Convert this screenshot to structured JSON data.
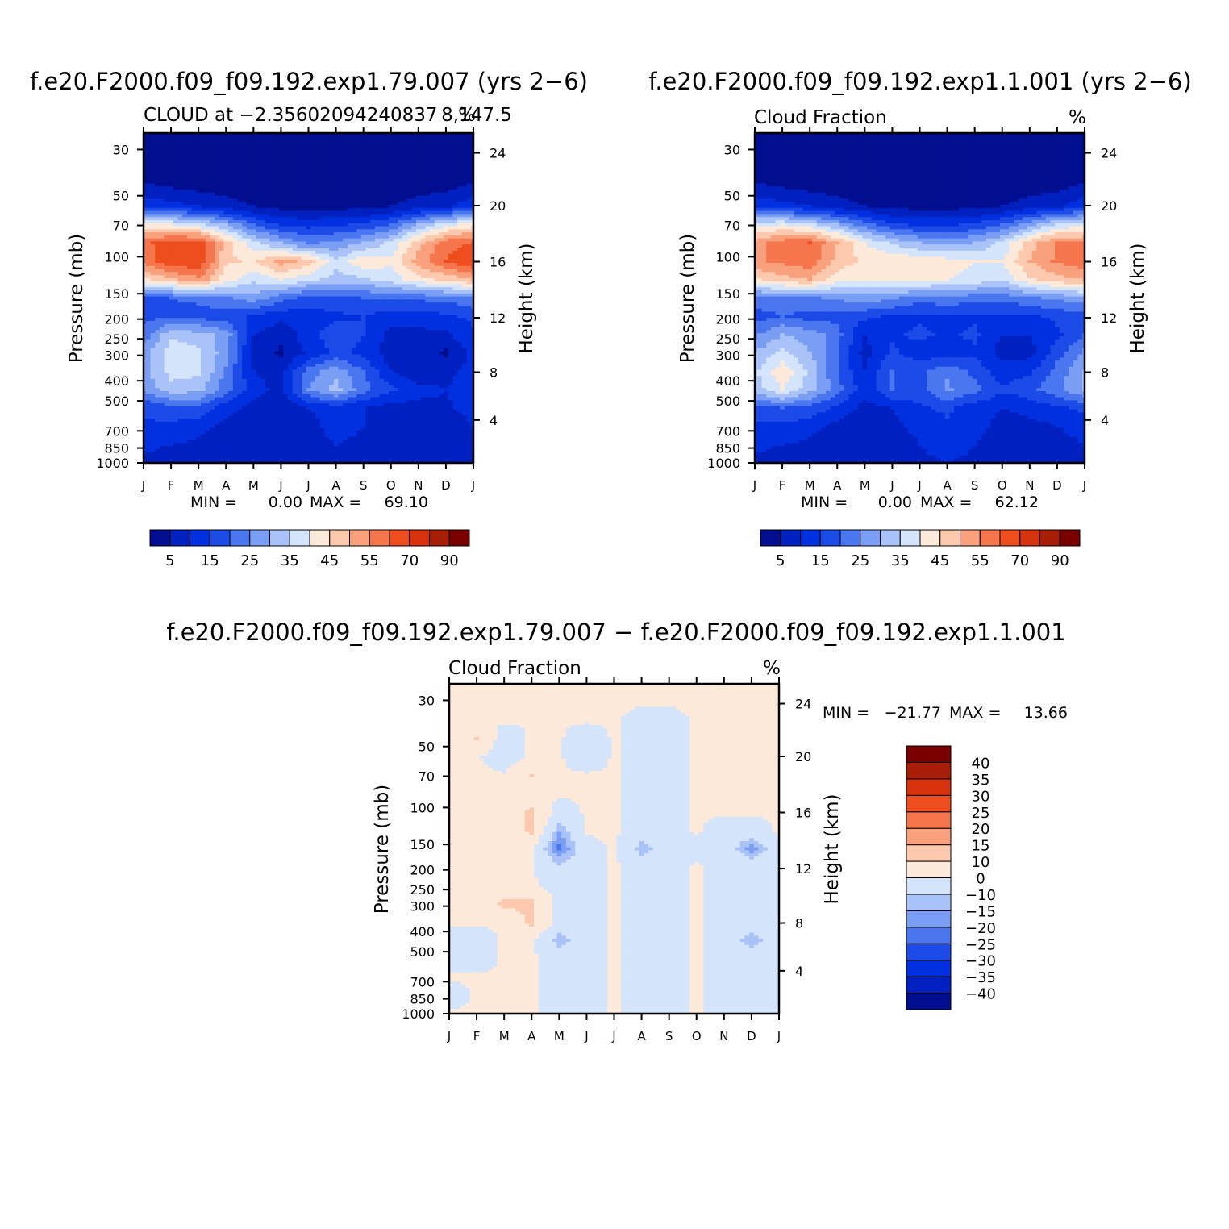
{
  "chart_data": [
    {
      "type": "heatmap",
      "title": "f.e20.F2000.f09_f09.192.exp1.79.007 (yrs 2−6)",
      "subtitle": "CLOUD at −2.35602094240837 8,147.5",
      "units": "%",
      "ylabel": "Pressure (mb)",
      "ylabel_right": "Height (km)",
      "x_ticks": [
        "J",
        "F",
        "M",
        "A",
        "M",
        "J",
        "J",
        "A",
        "S",
        "O",
        "N",
        "D",
        "J"
      ],
      "y_ticks": [
        "30",
        "50",
        "70",
        "100",
        "150",
        "200",
        "250",
        "300",
        "400",
        "500",
        "700",
        "850",
        "1000"
      ],
      "y_right_ticks": [
        "24",
        "20",
        "16",
        "12",
        "8",
        "4"
      ],
      "stats": {
        "min_label": "MIN =",
        "min": "0.00",
        "max_label": "MAX =",
        "max": "69.10"
      },
      "colorbar_labels": [
        "5",
        "15",
        "25",
        "35",
        "45",
        "55",
        "70",
        "90"
      ],
      "levels": [
        5,
        10,
        15,
        20,
        25,
        30,
        35,
        40,
        45,
        50,
        55,
        60,
        70,
        80,
        90
      ],
      "palette": [
        "#000e8f",
        "#0020c0",
        "#0030e0",
        "#1c4be8",
        "#4a76f0",
        "#7a9ef4",
        "#a9c2f8",
        "#d4e4fb",
        "#fde9d9",
        "#fcc8ae",
        "#f9a17c",
        "#f5764c",
        "#ee4d1e",
        "#d6320c",
        "#a81d06",
        "#7a0000"
      ],
      "values": [
        [
          0,
          0,
          0,
          0,
          0,
          0,
          0,
          0,
          0,
          0,
          0,
          0,
          0
        ],
        [
          0,
          0,
          0,
          0,
          0,
          0,
          0,
          0,
          0,
          0,
          0,
          0,
          0
        ],
        [
          2,
          1,
          1,
          0,
          0,
          0,
          0,
          0,
          0,
          0,
          0,
          1,
          2
        ],
        [
          6,
          5,
          4,
          3,
          2,
          1,
          1,
          1,
          1,
          2,
          3,
          4,
          6
        ],
        [
          14,
          12,
          10,
          7,
          5,
          3,
          3,
          3,
          3,
          5,
          7,
          9,
          14
        ],
        [
          42,
          40,
          37,
          30,
          20,
          14,
          13,
          14,
          16,
          20,
          30,
          38,
          42
        ],
        [
          58,
          64,
          63,
          48,
          36,
          30,
          24,
          26,
          30,
          36,
          48,
          58,
          60
        ],
        [
          57,
          64,
          64,
          46,
          44,
          52,
          48,
          36,
          44,
          41,
          52,
          60,
          66
        ],
        [
          44,
          49,
          54,
          42,
          36,
          40,
          36,
          33,
          34,
          37,
          43,
          46,
          50
        ],
        [
          18,
          20,
          21,
          24,
          28,
          22,
          18,
          19,
          20,
          20,
          21,
          22,
          24
        ],
        [
          18,
          19,
          18,
          17,
          14,
          12,
          12,
          14,
          15,
          13,
          13,
          14,
          16
        ],
        [
          22,
          34,
          32,
          28,
          10,
          6,
          13,
          18,
          15,
          8,
          8,
          9,
          14
        ],
        [
          28,
          38,
          36,
          27,
          8,
          4,
          11,
          16,
          14,
          7,
          7,
          4,
          12
        ],
        [
          28,
          37,
          36,
          24,
          10,
          8,
          22,
          28,
          20,
          10,
          6,
          8,
          12
        ],
        [
          26,
          33,
          32,
          22,
          12,
          8,
          25,
          32,
          22,
          16,
          12,
          10,
          14
        ],
        [
          16,
          18,
          18,
          12,
          8,
          6,
          10,
          13,
          10,
          8,
          8,
          9,
          12
        ],
        [
          14,
          14,
          12,
          8,
          6,
          5,
          8,
          12,
          10,
          6,
          6,
          6,
          10
        ],
        [
          11,
          10,
          9,
          6,
          5,
          5,
          8,
          10,
          9,
          6,
          5,
          5,
          9
        ],
        [
          9,
          8,
          7,
          6,
          5,
          5,
          8,
          9,
          8,
          6,
          5,
          5,
          8
        ]
      ]
    },
    {
      "type": "heatmap",
      "title": "f.e20.F2000.f09_f09.192.exp1.1.001 (yrs 2−6)",
      "subtitle": "Cloud Fraction",
      "units": "%",
      "ylabel": "Pressure (mb)",
      "ylabel_right": "Height (km)",
      "x_ticks": [
        "J",
        "F",
        "M",
        "A",
        "M",
        "J",
        "J",
        "A",
        "S",
        "O",
        "N",
        "D",
        "J"
      ],
      "y_ticks": [
        "30",
        "50",
        "70",
        "100",
        "150",
        "200",
        "250",
        "300",
        "400",
        "500",
        "700",
        "850",
        "1000"
      ],
      "y_right_ticks": [
        "24",
        "20",
        "16",
        "12",
        "8",
        "4"
      ],
      "stats": {
        "min_label": "MIN =",
        "min": "0.00",
        "max_label": "MAX =",
        "max": "62.12"
      },
      "colorbar_labels": [
        "5",
        "15",
        "25",
        "35",
        "45",
        "55",
        "70",
        "90"
      ],
      "levels": [
        5,
        10,
        15,
        20,
        25,
        30,
        35,
        40,
        45,
        50,
        55,
        60,
        70,
        80,
        90
      ],
      "palette": [
        "#000e8f",
        "#0020c0",
        "#0030e0",
        "#1c4be8",
        "#4a76f0",
        "#7a9ef4",
        "#a9c2f8",
        "#d4e4fb",
        "#fde9d9",
        "#fcc8ae",
        "#f9a17c",
        "#f5764c",
        "#ee4d1e",
        "#d6320c",
        "#a81d06",
        "#7a0000"
      ],
      "values": [
        [
          0,
          0,
          0,
          0,
          0,
          0,
          0,
          0,
          0,
          0,
          0,
          0,
          0
        ],
        [
          0,
          0,
          0,
          0,
          0,
          0,
          0,
          0,
          0,
          0,
          0,
          0,
          0
        ],
        [
          2,
          1,
          1,
          0,
          0,
          0,
          0,
          0,
          0,
          0,
          0,
          1,
          2
        ],
        [
          6,
          5,
          4,
          3,
          2,
          1,
          1,
          1,
          1,
          2,
          3,
          4,
          6
        ],
        [
          14,
          12,
          10,
          7,
          5,
          3,
          3,
          3,
          3,
          5,
          7,
          9,
          14
        ],
        [
          38,
          40,
          36,
          30,
          22,
          16,
          14,
          14,
          16,
          20,
          28,
          36,
          38
        ],
        [
          52,
          58,
          60,
          50,
          40,
          34,
          30,
          28,
          30,
          36,
          48,
          56,
          56
        ],
        [
          54,
          56,
          58,
          48,
          44,
          44,
          44,
          42,
          40,
          40,
          50,
          56,
          58
        ],
        [
          44,
          48,
          50,
          42,
          40,
          42,
          42,
          40,
          38,
          36,
          44,
          48,
          50
        ],
        [
          22,
          24,
          24,
          26,
          28,
          26,
          22,
          24,
          22,
          22,
          24,
          26,
          28
        ],
        [
          18,
          20,
          18,
          18,
          16,
          14,
          14,
          14,
          14,
          14,
          14,
          16,
          18
        ],
        [
          24,
          30,
          28,
          22,
          10,
          14,
          16,
          14,
          16,
          10,
          10,
          14,
          20
        ],
        [
          30,
          36,
          30,
          20,
          8,
          16,
          12,
          12,
          14,
          8,
          8,
          18,
          26
        ],
        [
          34,
          44,
          34,
          20,
          10,
          20,
          18,
          24,
          18,
          12,
          14,
          22,
          30
        ],
        [
          32,
          40,
          32,
          22,
          12,
          20,
          18,
          26,
          22,
          16,
          18,
          24,
          30
        ],
        [
          18,
          20,
          18,
          14,
          8,
          10,
          14,
          16,
          12,
          10,
          12,
          14,
          16
        ],
        [
          14,
          14,
          12,
          8,
          6,
          8,
          12,
          14,
          12,
          8,
          8,
          10,
          12
        ],
        [
          11,
          10,
          9,
          6,
          5,
          6,
          10,
          12,
          10,
          6,
          6,
          8,
          10
        ],
        [
          9,
          8,
          7,
          6,
          5,
          6,
          9,
          10,
          9,
          6,
          5,
          7,
          9
        ]
      ]
    },
    {
      "type": "heatmap",
      "title": "f.e20.F2000.f09_f09.192.exp1.79.007 − f.e20.F2000.f09_f09.192.exp1.1.001",
      "subtitle": "Cloud Fraction",
      "units": "%",
      "ylabel": "Pressure (mb)",
      "ylabel_right": "Height (km)",
      "x_ticks": [
        "J",
        "F",
        "M",
        "A",
        "M",
        "J",
        "J",
        "A",
        "S",
        "O",
        "N",
        "D",
        "J"
      ],
      "y_ticks": [
        "30",
        "50",
        "70",
        "100",
        "150",
        "200",
        "250",
        "300",
        "400",
        "500",
        "700",
        "850",
        "1000"
      ],
      "y_right_ticks": [
        "24",
        "20",
        "16",
        "12",
        "8",
        "4"
      ],
      "stats": {
        "min_label": "MIN =",
        "min": "−21.77",
        "max_label": "MAX =",
        "max": "13.66"
      },
      "colorbar_labels": [
        "40",
        "35",
        "30",
        "25",
        "20",
        "15",
        "10",
        "0",
        "−10",
        "−15",
        "−20",
        "−25",
        "−30",
        "−35",
        "−40"
      ],
      "levels": [
        -40,
        -35,
        -30,
        -25,
        -20,
        -15,
        -10,
        0,
        10,
        15,
        20,
        25,
        30,
        35,
        40
      ],
      "palette": [
        "#000e8f",
        "#0020c0",
        "#0030e0",
        "#1c4be8",
        "#4a76f0",
        "#7a9ef4",
        "#a9c2f8",
        "#d4e4fb",
        "#fde9d9",
        "#fcc8ae",
        "#f9a17c",
        "#f5764c",
        "#ee4d1e",
        "#d6320c",
        "#a81d06",
        "#7a0000"
      ],
      "values": [
        [
          1,
          1,
          1,
          1,
          1,
          1,
          1,
          1,
          1,
          1,
          1,
          1,
          1
        ],
        [
          1,
          1,
          1,
          1,
          1,
          1,
          1,
          1,
          1,
          1,
          1,
          1,
          1
        ],
        [
          1,
          1,
          1,
          1,
          1,
          1,
          1,
          -3,
          -3,
          1,
          1,
          1,
          1
        ],
        [
          1,
          11,
          -5,
          1,
          1,
          -6,
          1,
          -3,
          -3,
          1,
          1,
          1,
          1
        ],
        [
          1,
          1,
          -5,
          1,
          1,
          -6,
          1,
          -3,
          -3,
          1,
          1,
          1,
          1
        ],
        [
          1,
          1,
          1,
          11,
          1,
          1,
          1,
          -3,
          -3,
          1,
          1,
          1,
          1
        ],
        [
          1,
          1,
          1,
          1,
          1,
          1,
          1,
          -3,
          -3,
          1,
          1,
          1,
          1
        ],
        [
          1,
          1,
          1,
          12,
          -4,
          1,
          1,
          -3,
          -3,
          1,
          1,
          1,
          1
        ],
        [
          1,
          1,
          1,
          12,
          -14,
          1,
          1,
          -3,
          -3,
          1,
          -4,
          -4,
          1
        ],
        [
          1,
          1,
          1,
          1,
          -22,
          -3,
          1,
          -14,
          -3,
          -3,
          -4,
          -18,
          -3
        ],
        [
          1,
          1,
          1,
          1,
          -8,
          -3,
          1,
          -3,
          -3,
          1,
          -3,
          -3,
          -3
        ],
        [
          1,
          1,
          1,
          1,
          -3,
          -3,
          1,
          -3,
          -3,
          1,
          -3,
          -3,
          -3
        ],
        [
          1,
          1,
          12,
          12,
          -3,
          -3,
          1,
          -3,
          -3,
          1,
          -3,
          -3,
          -3
        ],
        [
          1,
          1,
          1,
          12,
          -3,
          -3,
          1,
          -3,
          -3,
          1,
          -3,
          -3,
          -3
        ],
        [
          -4,
          -4,
          1,
          1,
          -14,
          -3,
          1,
          -3,
          -3,
          1,
          -3,
          -14,
          -3
        ],
        [
          -4,
          -4,
          1,
          1,
          -3,
          -3,
          1,
          -3,
          -3,
          1,
          -3,
          -3,
          -3
        ],
        [
          1,
          1,
          1,
          1,
          -3,
          -3,
          1,
          -3,
          -3,
          1,
          -3,
          -3,
          -3
        ],
        [
          -4,
          1,
          1,
          1,
          -3,
          -3,
          1,
          -3,
          -3,
          1,
          -3,
          -3,
          -3
        ],
        [
          1,
          1,
          1,
          1,
          -3,
          -3,
          1,
          -3,
          -3,
          1,
          -3,
          -3,
          -3
        ]
      ]
    }
  ]
}
